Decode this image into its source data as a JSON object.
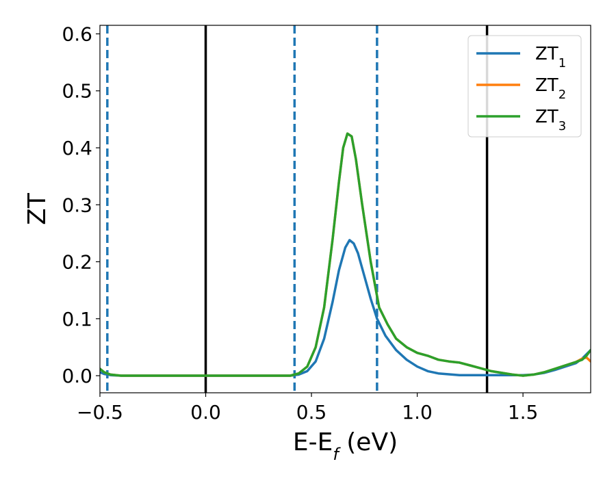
{
  "chart_data": {
    "type": "line",
    "xlabel": "E-E_f (eV)",
    "ylabel": "ZT",
    "xlim": [
      -0.5,
      1.82
    ],
    "ylim": [
      -0.03,
      0.615
    ],
    "xticks": [
      -0.5,
      0.0,
      0.5,
      1.0,
      1.5
    ],
    "xtick_labels": [
      "−0.5",
      "0.0",
      "0.5",
      "1.0",
      "1.5"
    ],
    "yticks": [
      0.0,
      0.1,
      0.2,
      0.3,
      0.4,
      0.5,
      0.6
    ],
    "ytick_labels": [
      "0.0",
      "0.1",
      "0.2",
      "0.3",
      "0.4",
      "0.5",
      "0.6"
    ],
    "grid": false,
    "legend_position": "top-right",
    "series": [
      {
        "name": "ZT1",
        "label_main": "ZT",
        "label_sub": "1",
        "color": "#1f77b4",
        "x": [
          -0.5,
          -0.48,
          -0.45,
          -0.4,
          -0.3,
          -0.2,
          -0.1,
          0.0,
          0.1,
          0.2,
          0.3,
          0.4,
          0.44,
          0.48,
          0.52,
          0.56,
          0.6,
          0.63,
          0.66,
          0.68,
          0.7,
          0.72,
          0.75,
          0.78,
          0.81,
          0.85,
          0.9,
          0.95,
          1.0,
          1.05,
          1.1,
          1.2,
          1.3,
          1.4,
          1.5,
          1.55,
          1.6,
          1.65,
          1.7,
          1.75,
          1.78,
          1.82
        ],
        "y": [
          0.006,
          0.003,
          0.001,
          0.0,
          0.0,
          0.0,
          0.0,
          0.0,
          0.0,
          0.0,
          0.0,
          0.0,
          0.002,
          0.008,
          0.025,
          0.065,
          0.13,
          0.185,
          0.225,
          0.238,
          0.232,
          0.215,
          0.175,
          0.135,
          0.1,
          0.07,
          0.045,
          0.028,
          0.016,
          0.008,
          0.004,
          0.001,
          0.001,
          0.001,
          0.001,
          0.002,
          0.005,
          0.01,
          0.016,
          0.022,
          0.03,
          0.045
        ]
      },
      {
        "name": "ZT2",
        "label_main": "ZT",
        "label_sub": "2",
        "color": "#ff7f0e",
        "x": [
          -0.5,
          -0.48,
          -0.45,
          -0.4,
          -0.3,
          -0.2,
          -0.1,
          0.0,
          0.1,
          0.2,
          0.3,
          0.4,
          0.44,
          0.48,
          0.52,
          0.56,
          0.6,
          0.63,
          0.65,
          0.67,
          0.69,
          0.71,
          0.74,
          0.78,
          0.82,
          0.86,
          0.9,
          0.95,
          1.0,
          1.05,
          1.1,
          1.15,
          1.2,
          1.25,
          1.3,
          1.35,
          1.4,
          1.45,
          1.5,
          1.55,
          1.6,
          1.65,
          1.7,
          1.75,
          1.78,
          1.8,
          1.82
        ],
        "y": [
          0.012,
          0.006,
          0.002,
          0.0,
          0.0,
          0.0,
          0.0,
          0.0,
          0.0,
          0.0,
          0.0,
          0.0,
          0.004,
          0.016,
          0.05,
          0.12,
          0.24,
          0.34,
          0.4,
          0.425,
          0.42,
          0.38,
          0.3,
          0.2,
          0.12,
          0.09,
          0.065,
          0.05,
          0.04,
          0.035,
          0.028,
          0.025,
          0.023,
          0.018,
          0.013,
          0.008,
          0.005,
          0.002,
          0.0,
          0.002,
          0.006,
          0.012,
          0.018,
          0.024,
          0.03,
          0.032,
          0.025
        ]
      },
      {
        "name": "ZT3",
        "label_main": "ZT",
        "label_sub": "3",
        "color": "#2ca02c",
        "x": [
          -0.5,
          -0.48,
          -0.45,
          -0.4,
          -0.3,
          -0.2,
          -0.1,
          0.0,
          0.1,
          0.2,
          0.3,
          0.4,
          0.44,
          0.48,
          0.52,
          0.56,
          0.6,
          0.63,
          0.65,
          0.67,
          0.69,
          0.71,
          0.74,
          0.78,
          0.82,
          0.86,
          0.9,
          0.95,
          1.0,
          1.05,
          1.1,
          1.15,
          1.2,
          1.25,
          1.3,
          1.35,
          1.4,
          1.45,
          1.5,
          1.55,
          1.6,
          1.65,
          1.7,
          1.75,
          1.78,
          1.8,
          1.82
        ],
        "y": [
          0.012,
          0.006,
          0.002,
          0.0,
          0.0,
          0.0,
          0.0,
          0.0,
          0.0,
          0.0,
          0.0,
          0.0,
          0.004,
          0.016,
          0.05,
          0.12,
          0.24,
          0.34,
          0.4,
          0.425,
          0.42,
          0.38,
          0.3,
          0.2,
          0.12,
          0.09,
          0.065,
          0.05,
          0.04,
          0.035,
          0.028,
          0.025,
          0.023,
          0.018,
          0.013,
          0.008,
          0.005,
          0.002,
          0.0,
          0.002,
          0.006,
          0.012,
          0.018,
          0.024,
          0.028,
          0.035,
          0.045
        ]
      }
    ],
    "vertical_lines": [
      {
        "x": 0.0,
        "style": "solid",
        "color": "#000000"
      },
      {
        "x": 1.33,
        "style": "solid",
        "color": "#000000"
      },
      {
        "x": -0.465,
        "style": "dashed",
        "color": "#1f77b4"
      },
      {
        "x": 0.42,
        "style": "dashed",
        "color": "#1f77b4"
      },
      {
        "x": 0.81,
        "style": "dashed",
        "color": "#1f77b4"
      }
    ]
  }
}
